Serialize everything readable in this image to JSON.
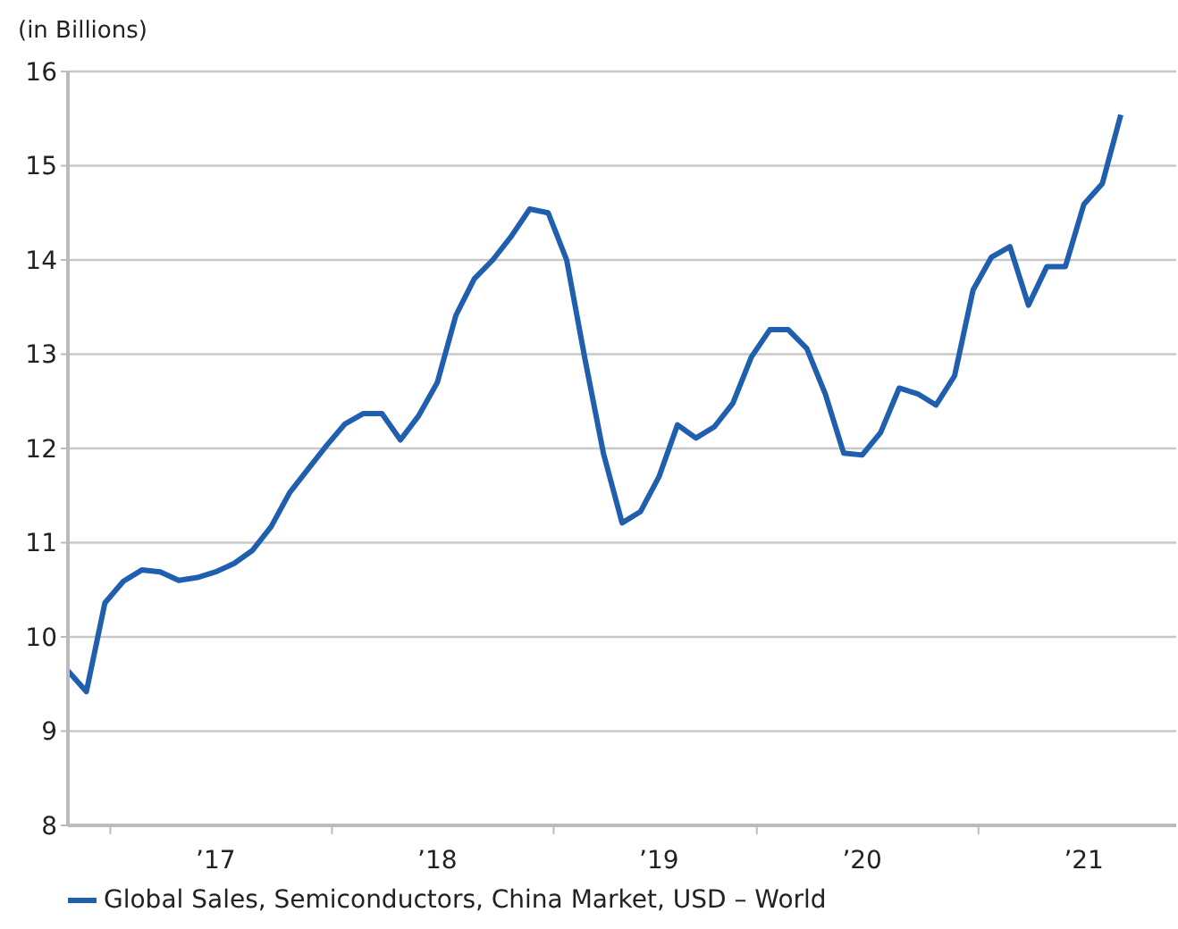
{
  "chart_data": {
    "type": "line",
    "ylabel": "(in Billions)",
    "categories": [
      null,
      null,
      null,
      null,
      null,
      null,
      null,
      null,
      "’17",
      null,
      null,
      null,
      null,
      null,
      null,
      null,
      null,
      null,
      null,
      null,
      "’18",
      null,
      null,
      null,
      null,
      null,
      null,
      null,
      null,
      null,
      null,
      null,
      "’19",
      null,
      null,
      null,
      null,
      null,
      null,
      null,
      null,
      null,
      null,
      "’20",
      null,
      null,
      null,
      null,
      null,
      null,
      null,
      null,
      null,
      null,
      null,
      "’21",
      null,
      null,
      null,
      null,
      null
    ],
    "series": [
      {
        "name": "Global Sales, Semiconductors, China Market, USD – World",
        "color": "#1f5fae",
        "values": [
          9.64,
          9.42,
          10.36,
          10.59,
          10.71,
          10.69,
          10.6,
          10.63,
          10.69,
          10.78,
          10.92,
          11.17,
          11.53,
          11.78,
          12.03,
          12.26,
          12.37,
          12.37,
          12.09,
          12.35,
          12.7,
          13.41,
          13.8,
          14.0,
          14.25,
          14.54,
          14.5,
          14.0,
          12.94,
          11.94,
          11.21,
          11.33,
          11.7,
          12.25,
          12.11,
          12.23,
          12.48,
          12.97,
          13.26,
          13.26,
          13.06,
          12.58,
          11.95,
          11.93,
          12.17,
          12.64,
          12.58,
          12.46,
          12.77,
          13.68,
          14.03,
          14.14,
          13.52,
          13.93,
          13.93,
          14.59,
          14.81,
          15.54,
          null,
          null,
          null
        ]
      }
    ],
    "ylim": [
      8,
      16
    ],
    "yticks": [
      8,
      9,
      10,
      11,
      12,
      13,
      14,
      15,
      16
    ],
    "grid": "y",
    "legend": "bottom",
    "marker": "none",
    "line_style": "solid"
  }
}
